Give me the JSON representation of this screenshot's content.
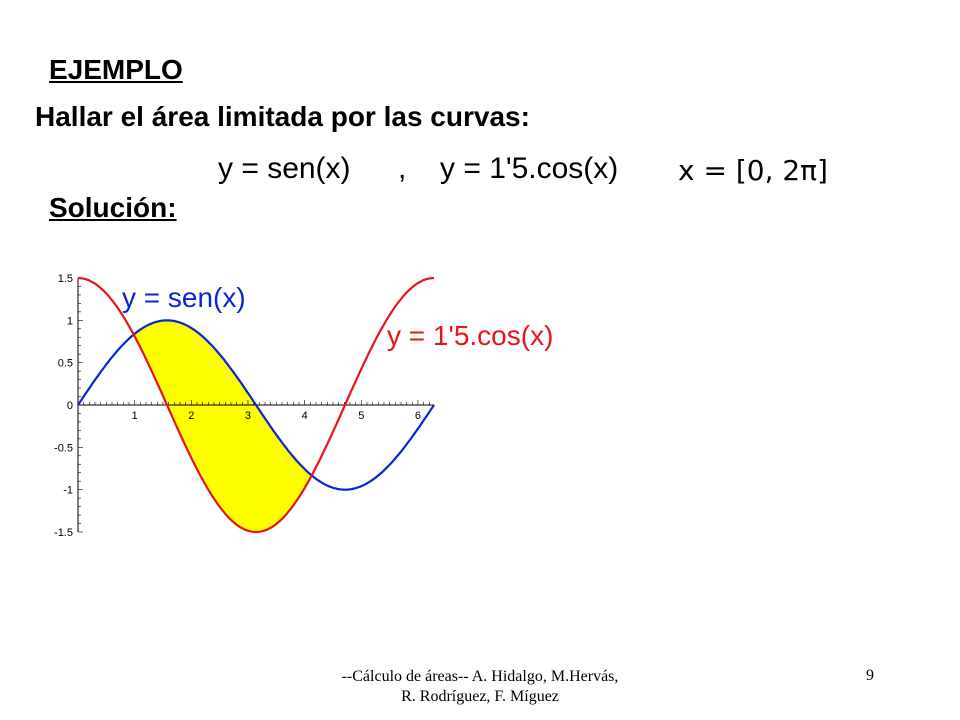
{
  "slide": {
    "heading": "EJEMPLO",
    "statement": "Hallar el área limitada por las curvas:",
    "equations": {
      "sin": "y = sen(x)",
      "separator": ",",
      "cos": "y = 1'5.cos(x)",
      "interval": "x = [0, 2π]"
    },
    "solution_label": "Solución:",
    "footer": "--Cálculo de áreas-- A. Hidalgo, M.Hervás, R. Rodríguez, F. Míguez",
    "page_number": "9"
  },
  "chart_data": {
    "type": "line",
    "xlim": [
      0,
      6.2832
    ],
    "ylim": [
      -1.5,
      1.5
    ],
    "x_ticks": [
      "1",
      "2",
      "3",
      "4",
      "5",
      "6"
    ],
    "y_ticks": [
      "1.5",
      "1",
      "0.5",
      "0",
      "-0.5",
      "-1",
      "-1.5"
    ],
    "series": [
      {
        "name": "y = sen(x)",
        "function": "sin(x)",
        "color": "#0b24d4"
      },
      {
        "name": "y = 1'5.cos(x)",
        "function": "1.5*cos(x)",
        "color": "#e8141c"
      }
    ],
    "shaded_region": {
      "between": [
        "y = sen(x)",
        "y = 1'5.cos(x)"
      ],
      "x_from": 0.9828,
      "x_to": 4.1244,
      "fill": "#ffff00"
    }
  }
}
